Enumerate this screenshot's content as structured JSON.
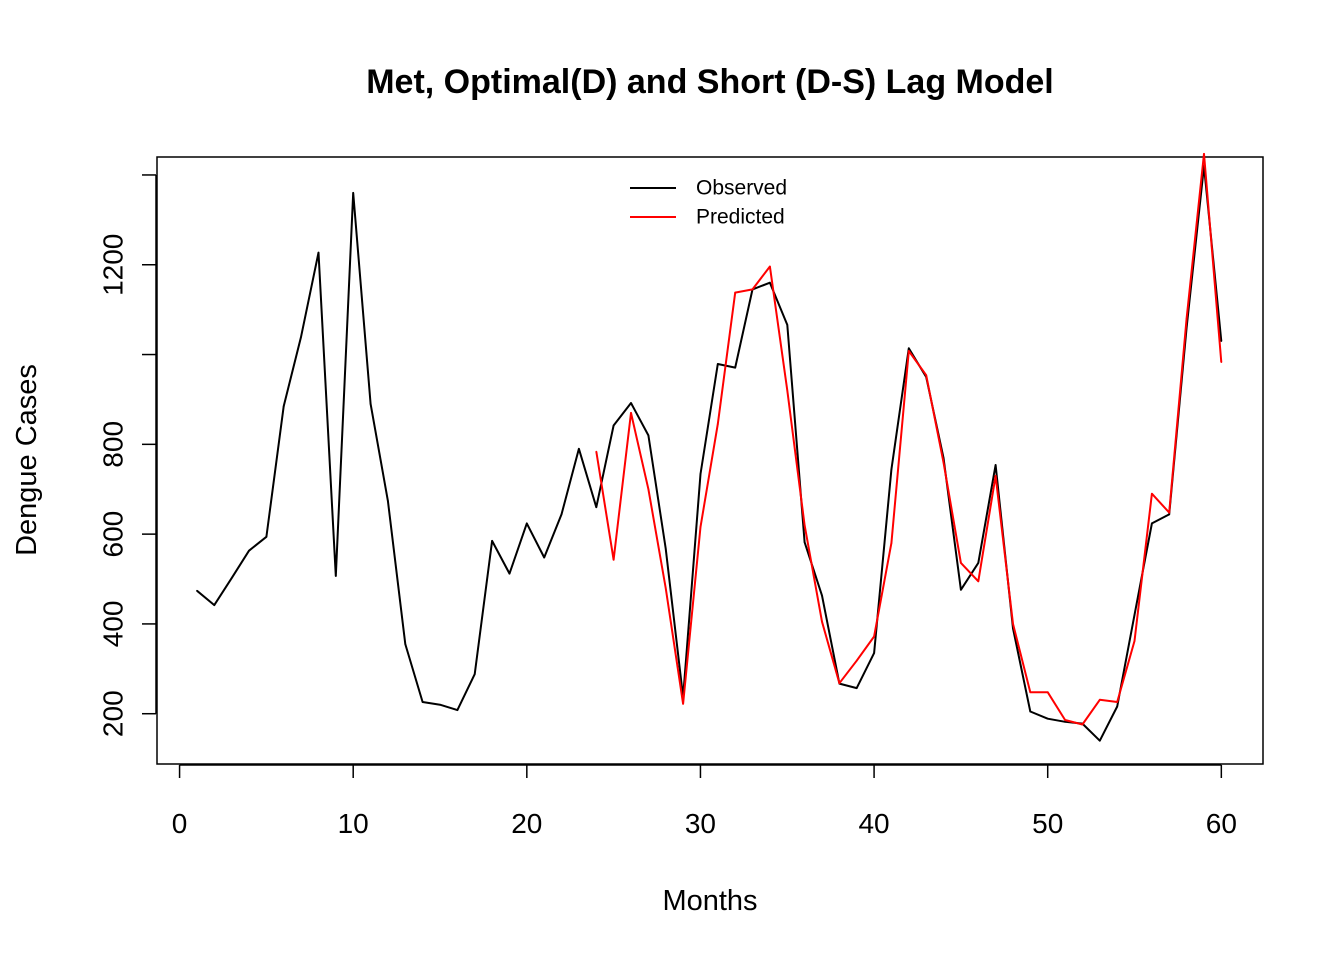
{
  "chart_data": {
    "type": "line",
    "title": "Met, Optimal(D) and Short (D-S) Lag Model",
    "xlabel": "Months",
    "ylabel": "Dengue Cases",
    "xlim": [
      -1.3,
      62.4
    ],
    "ylim": [
      88,
      1440
    ],
    "xticks": [
      0,
      10,
      20,
      30,
      40,
      50,
      60
    ],
    "yticks": [
      200,
      400,
      600,
      800,
      1200
    ],
    "grid": false,
    "legend_position": "top-center",
    "series": [
      {
        "name": "Observed",
        "color": "#000000",
        "x": [
          1,
          2,
          3,
          4,
          5,
          6,
          7,
          8,
          9,
          10,
          11,
          12,
          13,
          14,
          15,
          16,
          17,
          18,
          19,
          20,
          21,
          22,
          23,
          24,
          25,
          26,
          27,
          28,
          29,
          30,
          31,
          32,
          33,
          34,
          35,
          36,
          37,
          38,
          39,
          40,
          41,
          42,
          43,
          44,
          45,
          46,
          47,
          48,
          49,
          50,
          51,
          52,
          53,
          54,
          55,
          56,
          57,
          58,
          59,
          60
        ],
        "y": [
          474,
          442,
          502,
          563,
          594,
          885,
          1040,
          1227,
          507,
          1360,
          890,
          674,
          355,
          226,
          220,
          208,
          288,
          585,
          512,
          624,
          548,
          644,
          790,
          660,
          842,
          892,
          820,
          568,
          237,
          734,
          979,
          971,
          1145,
          1160,
          1066,
          582,
          463,
          267,
          257,
          335,
          744,
          1014,
          950,
          770,
          476,
          536,
          754,
          390,
          205,
          189,
          182,
          178,
          140,
          216,
          420,
          624,
          644,
          1060,
          1420,
          1030
        ],
        "values_note": ""
      },
      {
        "name": "Predicted",
        "color": "#ff0000",
        "x": [
          24,
          25,
          26,
          27,
          28,
          29,
          30,
          31,
          32,
          33,
          34,
          35,
          36,
          37,
          38,
          39,
          40,
          41,
          42,
          43,
          44,
          45,
          46,
          47,
          48,
          49,
          50,
          51,
          52,
          53,
          54,
          55,
          56,
          57,
          58,
          59,
          60
        ],
        "y": [
          784,
          543,
          870,
          700,
          480,
          222,
          616,
          845,
          1138,
          1145,
          1196,
          920,
          620,
          405,
          268,
          318,
          372,
          580,
          1008,
          954,
          760,
          536,
          495,
          730,
          400,
          248,
          248,
          186,
          176,
          231,
          226,
          362,
          690,
          648,
          1080,
          1447,
          983
        ]
      }
    ]
  }
}
